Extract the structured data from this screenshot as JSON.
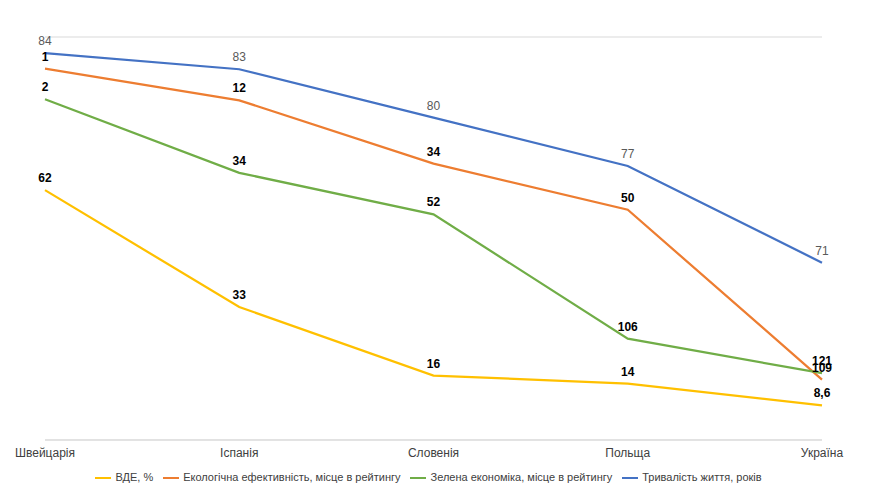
{
  "chart_data": {
    "type": "line",
    "categories": [
      "Швейцарія",
      "Іспанія",
      "Словенія",
      "Польща",
      "Україна"
    ],
    "grid": true,
    "data_labels": true,
    "legend": "bottom",
    "tick_labels": "x",
    "series": [
      {
        "name": "Тривалість життя, років",
        "color": "#4472c4",
        "values": [
          84,
          83,
          80,
          77,
          71
        ],
        "ylim": [
          60,
          85
        ],
        "yticks": [
          60,
          65,
          70,
          75,
          80,
          85
        ]
      },
      {
        "name": "Екологічна ефективність, місце в рейтингу",
        "color": "#ed7d31",
        "values": [
          1,
          12,
          34,
          50,
          109
        ],
        "ylim": [
          130,
          -10
        ]
      },
      {
        "name": "Зелена економіка, місце в рейтингу",
        "color": "#70ad47",
        "values": [
          2,
          34,
          52,
          106,
          121
        ],
        "ylim": [
          150,
          -25
        ]
      },
      {
        "name": "ВДЕ, %",
        "color": "#ffc000",
        "values": [
          62,
          33,
          16,
          14,
          8.6
        ],
        "value_labels": [
          "62",
          "33",
          "16",
          "14",
          "8,6"
        ],
        "ylim": [
          0,
          100
        ]
      }
    ]
  }
}
